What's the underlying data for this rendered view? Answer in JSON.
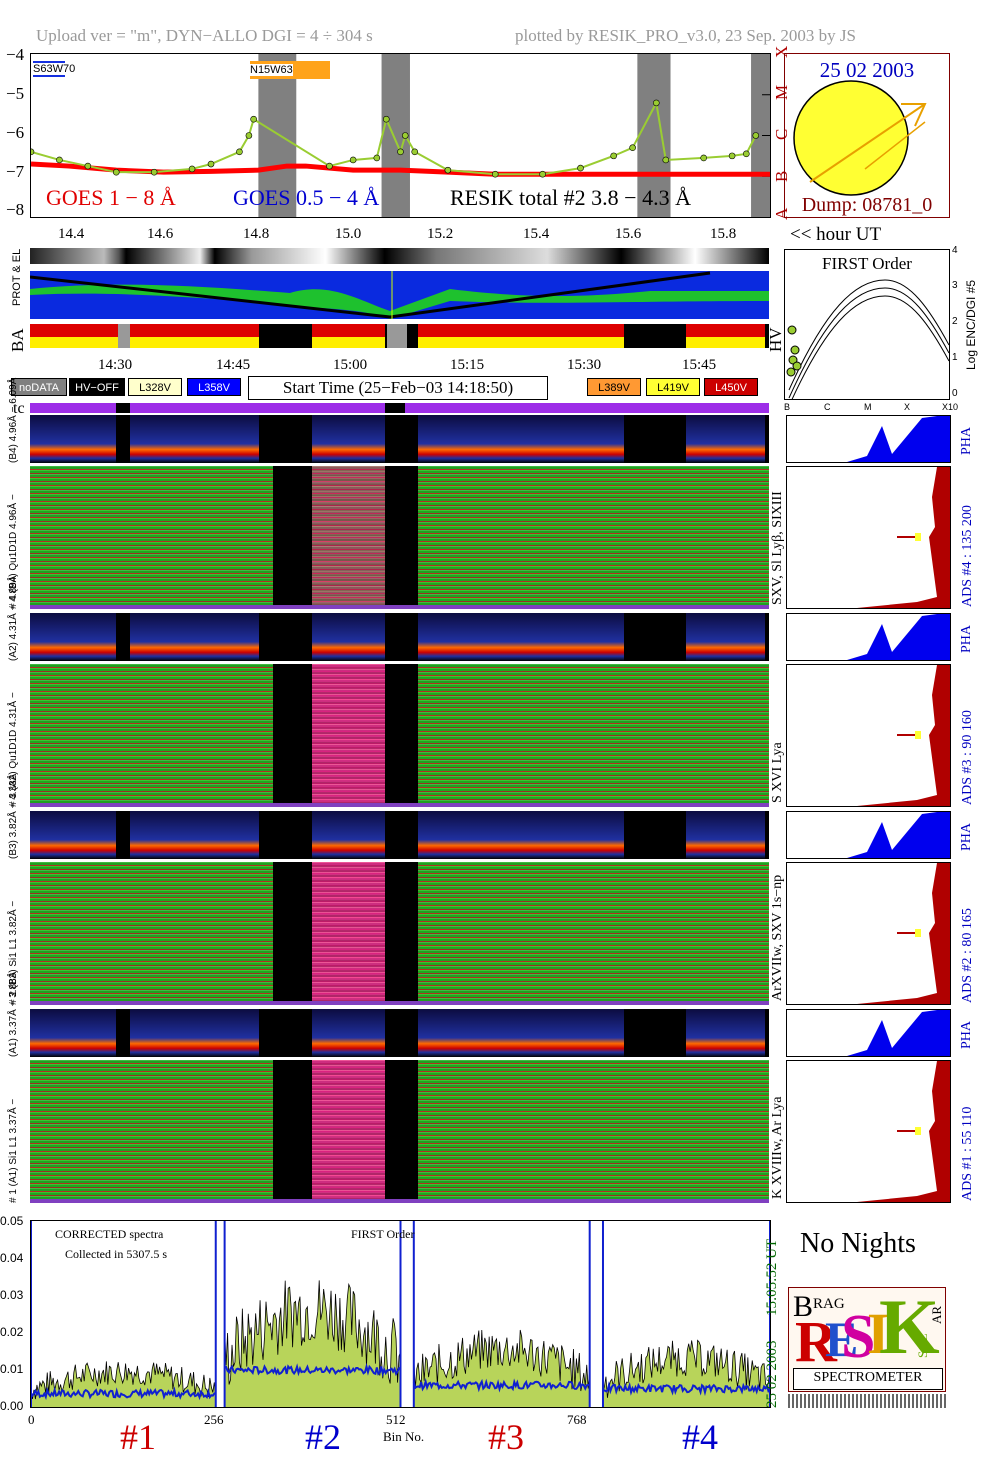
{
  "header": {
    "left": "Upload ver = \"m\", DYN−ALLO DGI =   4 ÷ 304 s",
    "right": "plotted by RESIK_PRO_v3.0, 23 Sep. 2003 by JS"
  },
  "goes_panel": {
    "y_ticks": [
      "−4",
      "−5",
      "−6",
      "−7",
      "−8"
    ],
    "flare_class_labels": [
      "X",
      "M",
      "C",
      "B",
      "A"
    ],
    "legend_goes_long": "GOES 1 − 8 Å",
    "legend_goes_short": "GOES 0.5 − 4 Å",
    "legend_resik": "RESIK total #2  3.8 − 4.3 Å",
    "region_labels": [
      "S63W70",
      "N15W63"
    ],
    "colors": {
      "goes_long": "#ff0000",
      "goes_short": "#0000ff",
      "resik": "#9acd32",
      "night_band": "#808080"
    }
  },
  "sun_panel": {
    "date": "25 02 2003",
    "dump": "Dump: 08781_0",
    "sun_color": "#ffff33",
    "arrow_color": "#e8a000"
  },
  "hour_axis": {
    "ticks": [
      "14.4",
      "14.6",
      "14.8",
      "15.0",
      "15.2",
      "15.4",
      "15.6",
      "15.8"
    ],
    "caption": "<< hour UT"
  },
  "strip_labels": {
    "prot_el": "PROT & EL",
    "ba": "BA",
    "hv": "HV",
    "tc": "tc"
  },
  "first_order_panel": {
    "title": "FIRST Order",
    "y_label": "Log ENC/DGI #5",
    "y_ticks": [
      "4",
      "3",
      "2",
      "1",
      "0"
    ],
    "x_ticks": [
      "B",
      "C",
      "M",
      "X",
      "X10"
    ]
  },
  "time_axis": {
    "ticks": [
      "14:30",
      "14:45",
      "15:00",
      "15:15",
      "15:30",
      "15:45"
    ]
  },
  "legend_bar": {
    "items": [
      {
        "label": "noDATA",
        "bg": "#808080",
        "fg": "#ffffff"
      },
      {
        "label": "HV−OFF",
        "bg": "#000000",
        "fg": "#ffffff"
      },
      {
        "label": "L328V",
        "bg": "#ffffcc",
        "fg": "#000000"
      },
      {
        "label": "L358V",
        "bg": "#0000ff",
        "fg": "#ffffff"
      },
      {
        "label": "L389V",
        "bg": "#ff9933",
        "fg": "#000000"
      },
      {
        "label": "L419V",
        "bg": "#ffff33",
        "fg": "#000000"
      },
      {
        "label": "L450V",
        "bg": "#cc0000",
        "fg": "#ffffff"
      }
    ],
    "start_time": "Start Time (25−Feb−03 14:18:50)"
  },
  "channels": [
    {
      "pha_label": "(B4) 4.96Å − 6.09Å",
      "spec_label": "# 4 (B4) Qu1D1D 4.96Å −",
      "right_label": "ADS #4 :   135 200",
      "lines": "SXV, Sl Lyβ, SIXIII",
      "pha": "PHA"
    },
    {
      "pha_label": "(A2) 4.31Å − 4.89Å",
      "spec_label": "# 3 (A2) Qu1D1D  4.31Å −",
      "right_label": "ADS #3 :   90 160",
      "lines": "S XVI Lya",
      "pha": "PHA"
    },
    {
      "pha_label": "(B3) 3.82Å − 4.33Å",
      "spec_label": "# 2 (B3) Si1 L1  3.82Å −",
      "right_label": "ADS #2 :   80 165",
      "lines": "ArXVIIw, SXV 1s−np",
      "pha": "PHA"
    },
    {
      "pha_label": "(A1) 3.37Å − 3.88Å",
      "spec_label": "# 1 (A1) Si1 L1  3.37Å −",
      "right_label": "ADS #1 :   55 110",
      "lines": "K XVIIIw, Ar Lya",
      "pha": "PHA"
    }
  ],
  "spectrum_panel": {
    "note1": "CORRECTED spectra",
    "note2": "Collected in  5307.5 s",
    "order": "FIRST Order",
    "y_ticks": [
      "0.05",
      "0.04",
      "0.03",
      "0.02",
      "0.01",
      "0.00"
    ],
    "x_ticks": [
      "0",
      "256",
      "512",
      "768"
    ],
    "x_label": "Bin No.",
    "channel_markers": [
      {
        "label": "#1",
        "color": "#cc0000"
      },
      {
        "label": "#2",
        "color": "#0000cc"
      },
      {
        "label": "#3",
        "color": "#cc0000"
      },
      {
        "label": "#4",
        "color": "#0000cc"
      }
    ],
    "side_time": "15:05:52 UT",
    "side_date": "25 02 2003"
  },
  "no_nights": "No Nights",
  "logo": {
    "title": "SPECTROMETER",
    "letters": [
      "B",
      "RAG",
      "R",
      "E",
      "S",
      "I",
      "K",
      "SOL",
      "AR"
    ]
  },
  "chart_data": {
    "type": "line",
    "title": "",
    "xlabel": "hour UT",
    "ylabel": "",
    "xlim": [
      14.32,
      15.88
    ],
    "ylim": [
      -8,
      -4
    ],
    "series": [
      {
        "name": "GOES 1 − 8 Å",
        "x": [
          14.32,
          14.4,
          14.5,
          14.6,
          14.7,
          14.8,
          14.86,
          14.9,
          15.0,
          15.1,
          15.2,
          15.3,
          15.4,
          15.5,
          15.6,
          15.7,
          15.8,
          15.88
        ],
        "values": [
          -6.7,
          -6.75,
          -6.85,
          -6.9,
          -6.88,
          -6.85,
          -6.75,
          -6.75,
          -6.85,
          -6.85,
          -6.9,
          -6.95,
          -6.95,
          -6.95,
          -6.95,
          -6.95,
          -6.95,
          -6.95
        ]
      },
      {
        "name": "RESIK total #2  3.8 − 4.3 Å",
        "x": [
          14.32,
          14.38,
          14.44,
          14.5,
          14.58,
          14.66,
          14.7,
          14.76,
          14.78,
          14.79,
          14.95,
          15.0,
          15.05,
          15.07,
          15.1,
          15.11,
          15.13,
          15.2,
          15.3,
          15.4,
          15.48,
          15.55,
          15.59,
          15.64,
          15.66,
          15.74,
          15.8,
          15.83,
          15.85
        ],
        "values": [
          -6.4,
          -6.6,
          -6.75,
          -6.9,
          -6.9,
          -6.82,
          -6.7,
          -6.4,
          -6.0,
          -5.6,
          -6.75,
          -6.6,
          -6.55,
          -5.6,
          -6.4,
          -6.0,
          -6.4,
          -6.85,
          -6.95,
          -6.95,
          -6.8,
          -6.5,
          -6.3,
          -5.2,
          -6.6,
          -6.55,
          -6.5,
          -6.45,
          -6.0
        ]
      }
    ],
    "night_bands_hour": [
      [
        14.8,
        14.88
      ],
      [
        15.06,
        15.12
      ],
      [
        15.6,
        15.67
      ],
      [
        15.84,
        15.88
      ]
    ],
    "spectrum": {
      "type": "area",
      "xlim": [
        0,
        1000
      ],
      "ylim": [
        0,
        0.05
      ],
      "segments": [
        {
          "channel": "#1",
          "range": [
            0,
            250
          ],
          "level": 0.008
        },
        {
          "channel": "#2",
          "range": [
            262,
            500
          ],
          "level": 0.022
        },
        {
          "channel": "#3",
          "range": [
            518,
            756
          ],
          "level": 0.013
        },
        {
          "channel": "#4",
          "range": [
            774,
            1000
          ],
          "level": 0.011
        }
      ]
    }
  }
}
